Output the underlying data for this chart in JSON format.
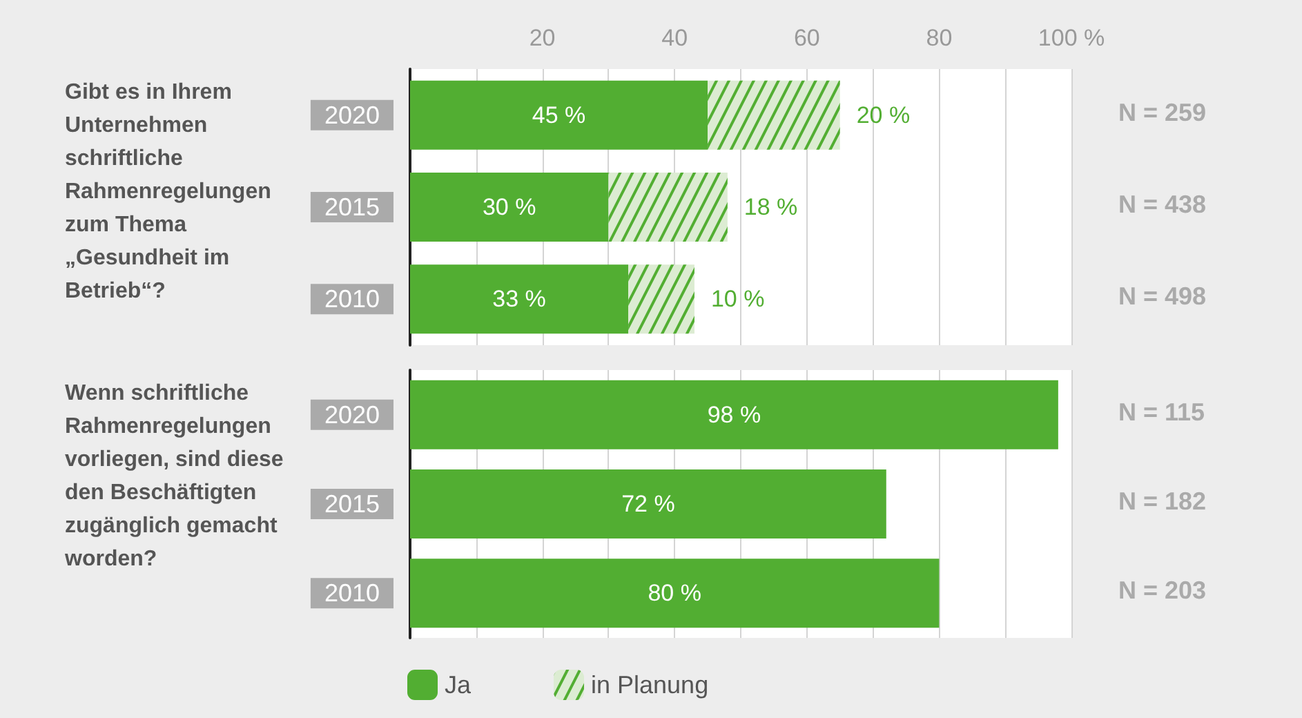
{
  "chart_data": [
    {
      "type": "bar",
      "orientation": "horizontal",
      "stacked": true,
      "title": "Gibt es in Ihrem Unternehmen schriftliche Rahmenregelungen zum Thema „Gesundheit im Betrieb“?",
      "categories": [
        "2020",
        "2015",
        "2010"
      ],
      "series": [
        {
          "color": "#52ae32",
          "values": [
            45,
            30,
            33
          ],
          "value_labels": [
            "45 %",
            "30 %",
            "33 %"
          ]
        },
        {
          "color": "#dcecd2",
          "values": [
            20,
            18,
            10
          ],
          "value_labels": [
            "20 %",
            "18 %",
            "10 %"
          ]
        }
      ],
      "xlim": [
        0,
        100
      ],
      "xticks": [
        {
          "value": 10,
          "label": null
        },
        20,
        {
          "value": 30,
          "label": null
        },
        40,
        {
          "value": 50,
          "label": null
        },
        60,
        {
          "value": 70,
          "label": null
        },
        80,
        {
          "value": 90,
          "label": null
        },
        {
          "value": 100,
          "label": "100 %"
        }
      ],
      "grid": "x",
      "legend": false,
      "annotations": [
        "N = 259",
        "N = 438",
        "N = 498"
      ]
    },
    {
      "type": "bar",
      "orientation": "horizontal",
      "stacked": true,
      "title": "Wenn schriftliche Rahmenregelungen vorliegen, sind diese den Beschäftigten zugänglich gemacht worden?",
      "categories": [
        "2020",
        "2015",
        "2010"
      ],
      "series": [
        {
          "name": "Ja",
          "color": "#52ae32",
          "values": [
            98,
            72,
            80
          ],
          "value_labels": [
            "98 %",
            "72 %",
            "80 %"
          ]
        },
        {
          "name": "in Planung",
          "color": "#dcecd2",
          "values": [
            null,
            null,
            null
          ]
        }
      ],
      "xlim": [
        0,
        100
      ],
      "xticks": [
        {
          "value": 10,
          "label": null
        },
        {
          "value": 20,
          "label": null
        },
        {
          "value": 30,
          "label": null
        },
        {
          "value": 40,
          "label": null
        },
        {
          "value": 50,
          "label": null
        },
        {
          "value": 60,
          "label": null
        },
        {
          "value": 70,
          "label": null
        },
        {
          "value": 80,
          "label": null
        },
        {
          "value": 90,
          "label": null
        },
        {
          "value": 100,
          "label": null
        }
      ],
      "tick_labels": "y",
      "grid": "x",
      "legend": "bottom",
      "annotations": [
        "N = 115",
        "N = 182",
        "N = 203"
      ]
    }
  ]
}
